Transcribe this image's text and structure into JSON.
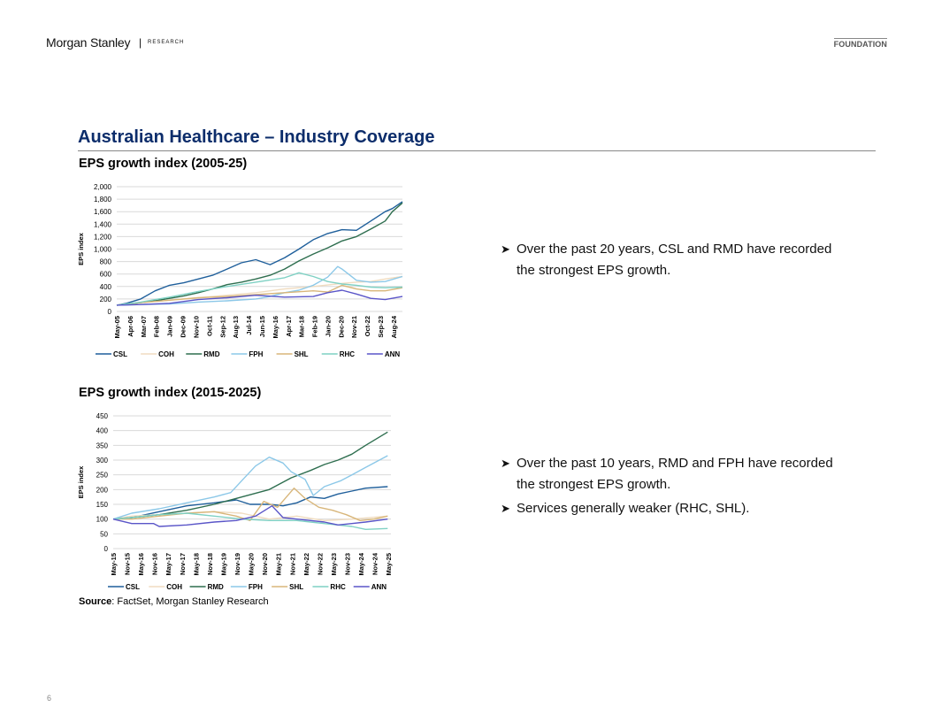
{
  "header": {
    "logo": "Morgan Stanley",
    "separator": "|",
    "research": "RESEARCH",
    "foundation": "FOUNDATION"
  },
  "page_title": "Australian Healthcare – Industry Coverage",
  "bullets_top": [
    "Over the past 20 years, CSL and RMD have recorded the strongest EPS growth."
  ],
  "bullets_bottom": [
    "Over the past 10 years, RMD and FPH have recorded the strongest EPS growth.",
    "Services generally weaker (RHC, SHL)."
  ],
  "bullet_arrow": "➤",
  "source": {
    "label": "Source",
    "text": ": FactSet, Morgan Stanley Research"
  },
  "page_number": "6",
  "colors": {
    "CSL": "#1f5f9b",
    "COH": "#f0dcc0",
    "RMD": "#2e6e4f",
    "FPH": "#8cc8e8",
    "SHL": "#d8b67a",
    "RHC": "#7fd1c4",
    "ANN": "#5a55c8",
    "grid": "#d9d9d9",
    "title": "#0c2d6b"
  },
  "chart_data": [
    {
      "type": "line",
      "title": "EPS growth index (2005-25)",
      "ylabel": "EPS index",
      "ylim": [
        0,
        2000
      ],
      "yticks": [
        "0",
        "200",
        "400",
        "600",
        "800",
        "1,000",
        "1,200",
        "1,400",
        "1,600",
        "1,800",
        "2,000"
      ],
      "ytick_values": [
        0,
        200,
        400,
        600,
        800,
        1000,
        1200,
        1400,
        1600,
        1800,
        2000
      ],
      "xlim": [
        2005.33,
        2025.2
      ],
      "xticks": [
        "May-05",
        "Apr-06",
        "Mar-07",
        "Feb-08",
        "Jan-09",
        "Dec-09",
        "Nov-10",
        "Oct-11",
        "Sep-12",
        "Aug-13",
        "Jul-14",
        "Jun-15",
        "May-16",
        "Apr-17",
        "Mar-18",
        "Feb-19",
        "Jan-20",
        "Dec-20",
        "Nov-21",
        "Oct-22",
        "Sep-23",
        "Aug-24"
      ],
      "xtick_values": [
        2005.33,
        2006.25,
        2007.17,
        2008.08,
        2009.0,
        2009.92,
        2010.83,
        2011.75,
        2012.67,
        2013.58,
        2014.5,
        2015.42,
        2016.33,
        2017.25,
        2018.17,
        2019.08,
        2020.0,
        2020.92,
        2021.83,
        2022.75,
        2023.67,
        2024.58
      ],
      "grid": true,
      "legend_position": "bottom",
      "series": [
        {
          "name": "CSL",
          "x": [
            2005.33,
            2006,
            2007,
            2008,
            2009,
            2010,
            2011,
            2012,
            2013,
            2014,
            2015,
            2016,
            2017,
            2018,
            2019,
            2020,
            2021,
            2022,
            2023,
            2024,
            2024.5,
            2025.2
          ],
          "values": [
            100,
            130,
            200,
            330,
            420,
            460,
            520,
            580,
            680,
            780,
            830,
            750,
            860,
            1000,
            1150,
            1250,
            1310,
            1300,
            1450,
            1600,
            1650,
            1760
          ]
        },
        {
          "name": "COH",
          "x": [
            2005.33,
            2007,
            2009,
            2011,
            2013,
            2015,
            2017,
            2019,
            2021,
            2022,
            2023,
            2024,
            2025.2
          ],
          "values": [
            100,
            140,
            180,
            220,
            260,
            300,
            360,
            400,
            450,
            470,
            480,
            520,
            560
          ]
        },
        {
          "name": "RMD",
          "x": [
            2005.33,
            2006,
            2007,
            2008,
            2009,
            2010,
            2011,
            2012,
            2013,
            2014,
            2015,
            2016,
            2017,
            2018,
            2019,
            2020,
            2021,
            2022,
            2023,
            2024,
            2024.5,
            2025.2
          ],
          "values": [
            100,
            115,
            140,
            170,
            210,
            250,
            300,
            360,
            430,
            470,
            520,
            580,
            680,
            810,
            920,
            1020,
            1130,
            1200,
            1320,
            1450,
            1600,
            1740
          ]
        },
        {
          "name": "FPH",
          "x": [
            2005.33,
            2007,
            2009,
            2011,
            2013,
            2015,
            2016,
            2017,
            2018,
            2019,
            2020,
            2020.7,
            2021,
            2022,
            2023,
            2024,
            2025.2
          ],
          "values": [
            100,
            110,
            120,
            150,
            170,
            200,
            240,
            300,
            340,
            420,
            550,
            720,
            680,
            500,
            470,
            480,
            560
          ]
        },
        {
          "name": "SHL",
          "x": [
            2005.33,
            2007,
            2009,
            2011,
            2013,
            2015,
            2017,
            2019,
            2020,
            2021,
            2022,
            2023,
            2024,
            2025.2
          ],
          "values": [
            100,
            140,
            180,
            220,
            240,
            270,
            300,
            330,
            310,
            420,
            360,
            330,
            330,
            380
          ]
        },
        {
          "name": "RHC",
          "x": [
            2005.33,
            2007,
            2009,
            2011,
            2013,
            2015,
            2017,
            2018,
            2019,
            2020,
            2021,
            2022,
            2023,
            2024,
            2025.2
          ],
          "values": [
            100,
            150,
            230,
            320,
            400,
            470,
            540,
            620,
            560,
            480,
            440,
            420,
            390,
            380,
            390
          ]
        },
        {
          "name": "ANN",
          "x": [
            2005.33,
            2007,
            2009,
            2011,
            2013,
            2015,
            2017,
            2019,
            2020,
            2021,
            2022,
            2023,
            2024,
            2025.2
          ],
          "values": [
            100,
            110,
            130,
            190,
            220,
            260,
            230,
            240,
            300,
            340,
            280,
            210,
            190,
            240
          ]
        }
      ]
    },
    {
      "type": "line",
      "title": "EPS growth index (2015-2025)",
      "ylabel": "EPS index",
      "ylim": [
        0,
        450
      ],
      "yticks": [
        "0",
        "50",
        "100",
        "150",
        "200",
        "250",
        "300",
        "350",
        "400",
        "450"
      ],
      "ytick_values": [
        0,
        50,
        100,
        150,
        200,
        250,
        300,
        350,
        400,
        450
      ],
      "xlim": [
        2015.33,
        2025.42
      ],
      "xticks": [
        "May-15",
        "Nov-15",
        "May-16",
        "Nov-16",
        "May-17",
        "Nov-17",
        "May-18",
        "Nov-18",
        "May-19",
        "Nov-19",
        "May-20",
        "Nov-20",
        "May-21",
        "Nov-21",
        "May-22",
        "Nov-22",
        "May-23",
        "Nov-23",
        "May-24",
        "Nov-24",
        "May-25"
      ],
      "xtick_values": [
        2015.33,
        2015.83,
        2016.33,
        2016.83,
        2017.33,
        2017.83,
        2018.33,
        2018.83,
        2019.33,
        2019.83,
        2020.33,
        2020.83,
        2021.33,
        2021.83,
        2022.33,
        2022.83,
        2023.33,
        2023.83,
        2024.33,
        2024.83,
        2025.33
      ],
      "grid": true,
      "legend_position": "bottom",
      "series": [
        {
          "name": "CSL",
          "x": [
            2015.33,
            2016,
            2017,
            2018,
            2019,
            2019.8,
            2020.3,
            2021,
            2021.5,
            2022,
            2022.5,
            2023,
            2023.5,
            2024,
            2024.5,
            2025.3
          ],
          "values": [
            100,
            105,
            125,
            145,
            155,
            165,
            150,
            150,
            145,
            155,
            175,
            170,
            185,
            195,
            205,
            210
          ]
        },
        {
          "name": "COH",
          "x": [
            2015.33,
            2016,
            2017,
            2018,
            2019,
            2020,
            2021,
            2022,
            2023,
            2024,
            2025.3
          ],
          "values": [
            100,
            110,
            115,
            120,
            125,
            120,
            100,
            110,
            95,
            100,
            110
          ]
        },
        {
          "name": "RMD",
          "x": [
            2015.33,
            2016,
            2017,
            2018,
            2019,
            2020,
            2021,
            2021.8,
            2022.5,
            2023,
            2023.5,
            2024,
            2024.5,
            2025.3
          ],
          "values": [
            100,
            105,
            115,
            130,
            150,
            175,
            200,
            240,
            265,
            285,
            300,
            320,
            350,
            395
          ]
        },
        {
          "name": "FPH",
          "x": [
            2015.33,
            2016,
            2017,
            2018,
            2019,
            2019.6,
            2020,
            2020.5,
            2021,
            2021.5,
            2021.8,
            2022.3,
            2022.6,
            2023,
            2023.6,
            2024,
            2024.5,
            2025.3
          ],
          "values": [
            100,
            120,
            135,
            155,
            175,
            190,
            230,
            280,
            310,
            290,
            260,
            235,
            180,
            210,
            230,
            250,
            275,
            315
          ]
        },
        {
          "name": "SHL",
          "x": [
            2015.33,
            2016,
            2017,
            2018,
            2019,
            2019.8,
            2020.3,
            2020.8,
            2021.3,
            2021.9,
            2022.3,
            2022.8,
            2023.3,
            2023.8,
            2024.3,
            2024.8,
            2025.3
          ],
          "values": [
            100,
            100,
            110,
            120,
            125,
            110,
            95,
            160,
            140,
            205,
            170,
            140,
            130,
            115,
            95,
            100,
            110
          ]
        },
        {
          "name": "RHC",
          "x": [
            2015.33,
            2016,
            2017,
            2018,
            2019,
            2020,
            2021,
            2022,
            2022.5,
            2023,
            2023.5,
            2024,
            2024.5,
            2025.3
          ],
          "values": [
            100,
            105,
            115,
            120,
            110,
            100,
            95,
            95,
            90,
            85,
            80,
            75,
            65,
            68
          ]
        },
        {
          "name": "ANN",
          "x": [
            2015.33,
            2016,
            2016.8,
            2017,
            2018,
            2019,
            2019.8,
            2020.5,
            2021.1,
            2021.5,
            2022,
            2022.5,
            2023,
            2023.5,
            2024,
            2024.5,
            2025.3
          ],
          "values": [
            100,
            85,
            85,
            75,
            80,
            90,
            95,
            110,
            145,
            105,
            100,
            95,
            90,
            80,
            85,
            90,
            100
          ]
        }
      ]
    }
  ]
}
